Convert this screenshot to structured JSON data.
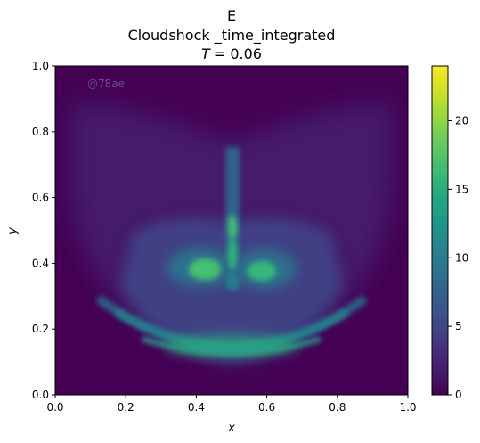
{
  "chart_data": {
    "type": "heatmap",
    "title": "E",
    "subtitle": "Cloudshock _time_integrated",
    "time_label_var": "T",
    "time_label_value": "= 0.06",
    "xlabel": "x",
    "ylabel": "y",
    "xlim": [
      0.0,
      1.0
    ],
    "ylim": [
      0.0,
      1.0
    ],
    "x_ticks": [
      "0.0",
      "0.2",
      "0.4",
      "0.6",
      "0.8",
      "1.0"
    ],
    "y_ticks": [
      "0.0",
      "0.2",
      "0.4",
      "0.6",
      "0.8",
      "1.0"
    ],
    "colorbar": {
      "colormap": "viridis",
      "range": [
        0,
        24
      ],
      "ticks": [
        "0",
        "5",
        "10",
        "15",
        "20"
      ]
    },
    "watermark": "@78ae",
    "features": [
      {
        "name": "left-lobe",
        "x": 0.42,
        "y": 0.37,
        "peak": 16
      },
      {
        "name": "right-lobe",
        "x": 0.59,
        "y": 0.375,
        "peak": 14
      },
      {
        "name": "central-jet-lower",
        "x": 0.5,
        "y": 0.44,
        "peak": 13
      },
      {
        "name": "central-jet-upper",
        "x": 0.5,
        "y": 0.51,
        "peak": 14
      },
      {
        "name": "bottom-arc",
        "x": 0.5,
        "y": 0.15,
        "peak": 11
      }
    ]
  }
}
